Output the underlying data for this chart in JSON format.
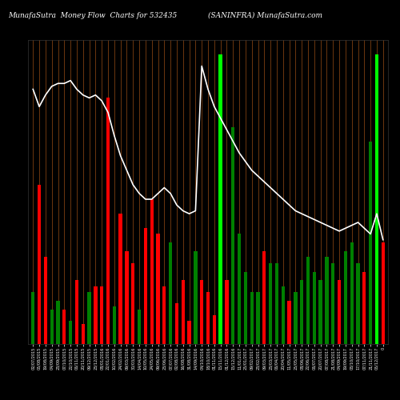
{
  "title_left": "MunafaSutra  Money Flow  Charts for 532435",
  "title_right": "(SANINFRA) MunafaSutra.com",
  "bg_color": "#000000",
  "grid_color": "#8B4513",
  "fig_size": [
    5.0,
    5.0
  ],
  "bar_colors": [
    "green",
    "red",
    "red",
    "green",
    "green",
    "red",
    "green",
    "red",
    "red",
    "green",
    "red",
    "red",
    "red",
    "green",
    "red",
    "red",
    "red",
    "green",
    "red",
    "red",
    "red",
    "red",
    "green",
    "red",
    "red",
    "red",
    "green",
    "red",
    "red",
    "red",
    "lime",
    "red",
    "green",
    "green",
    "green",
    "green",
    "green",
    "red",
    "green",
    "green",
    "green",
    "red",
    "green",
    "green",
    "green",
    "green",
    "green",
    "green",
    "green",
    "red",
    "green",
    "green",
    "green",
    "red",
    "green",
    "lime",
    "red"
  ],
  "bar_heights": [
    18,
    55,
    30,
    12,
    15,
    12,
    8,
    22,
    7,
    18,
    20,
    20,
    85,
    13,
    45,
    32,
    28,
    12,
    40,
    50,
    38,
    20,
    35,
    14,
    22,
    8,
    32,
    22,
    18,
    10,
    100,
    22,
    75,
    38,
    25,
    18,
    18,
    32,
    28,
    28,
    20,
    15,
    18,
    22,
    30,
    25,
    22,
    30,
    28,
    22,
    32,
    35,
    28,
    25,
    70,
    100,
    35
  ],
  "line_values": [
    88,
    82,
    86,
    89,
    90,
    90,
    91,
    88,
    86,
    85,
    86,
    84,
    80,
    72,
    65,
    60,
    55,
    52,
    50,
    50,
    52,
    54,
    52,
    48,
    46,
    45,
    46,
    96,
    88,
    82,
    78,
    74,
    70,
    66,
    63,
    60,
    58,
    56,
    54,
    52,
    50,
    48,
    46,
    45,
    44,
    43,
    42,
    41,
    40,
    39,
    40,
    41,
    42,
    40,
    38,
    45,
    36
  ],
  "x_labels": [
    "02/07/2015",
    "05/08/2015",
    "19/08/2015",
    "04/09/2015",
    "23/09/2015",
    "07/10/2015",
    "22/10/2015",
    "06/11/2015",
    "20/11/2015",
    "09/12/2015",
    "23/12/2015",
    "08/01/2016",
    "22/01/2016",
    "10/02/2016",
    "24/02/2016",
    "09/03/2016",
    "30/03/2016",
    "14/04/2016",
    "10/05/2016",
    "24/05/2016",
    "09/06/2016",
    "23/06/2016",
    "07/07/2016",
    "02/08/2016",
    "16/08/2016",
    "31/08/2016",
    "14/09/2016",
    "04/10/2016",
    "18/10/2016",
    "01/11/2016",
    "15/11/2016",
    "01/12/2016",
    "15/12/2016",
    "11/01/2017",
    "25/01/2017",
    "09/02/2017",
    "23/02/2017",
    "09/03/2017",
    "23/03/2017",
    "06/04/2017",
    "20/04/2017",
    "11/05/2017",
    "25/05/2017",
    "08/06/2017",
    "22/06/2017",
    "06/07/2017",
    "20/07/2017",
    "07/08/2017",
    "21/08/2017",
    "04/09/2017",
    "19/09/2017",
    "03/10/2017",
    "17/10/2017",
    "07/11/2017",
    "21/11/2017",
    "05/12/2017",
    "0"
  ]
}
